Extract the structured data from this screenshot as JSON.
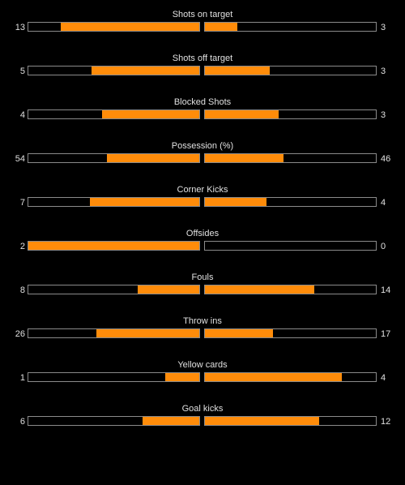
{
  "colors": {
    "background": "#000000",
    "bar_fill": "#ff8c0a",
    "bar_border": "#8a8a8a",
    "text": "#e0e0e0"
  },
  "stats": [
    {
      "label": "Shots on target",
      "home": "13",
      "away": "3",
      "home_fill": 0.81,
      "away_fill": 0.19
    },
    {
      "label": "Shots off target",
      "home": "5",
      "away": "3",
      "away_fill": 0.38,
      "home_fill": 0.63
    },
    {
      "label": "Blocked Shots",
      "home": "4",
      "away": "3",
      "home_fill": 0.57,
      "away_fill": 0.43
    },
    {
      "label": "Possession (%)",
      "home": "54",
      "away": "46",
      "home_fill": 0.54,
      "away_fill": 0.46
    },
    {
      "label": "Corner Kicks",
      "home": "7",
      "away": "4",
      "home_fill": 0.64,
      "away_fill": 0.36
    },
    {
      "label": "Offsides",
      "home": "2",
      "away": "0",
      "home_fill": 1.0,
      "away_fill": 0.0
    },
    {
      "label": "Fouls",
      "home": "8",
      "away": "14",
      "home_fill": 0.36,
      "away_fill": 0.64
    },
    {
      "label": "Throw ins",
      "home": "26",
      "away": "17",
      "home_fill": 0.6,
      "away_fill": 0.4
    },
    {
      "label": "Yellow cards",
      "home": "1",
      "away": "4",
      "home_fill": 0.2,
      "away_fill": 0.8
    },
    {
      "label": "Goal kicks",
      "home": "6",
      "away": "12",
      "home_fill": 0.33,
      "away_fill": 0.67
    }
  ]
}
